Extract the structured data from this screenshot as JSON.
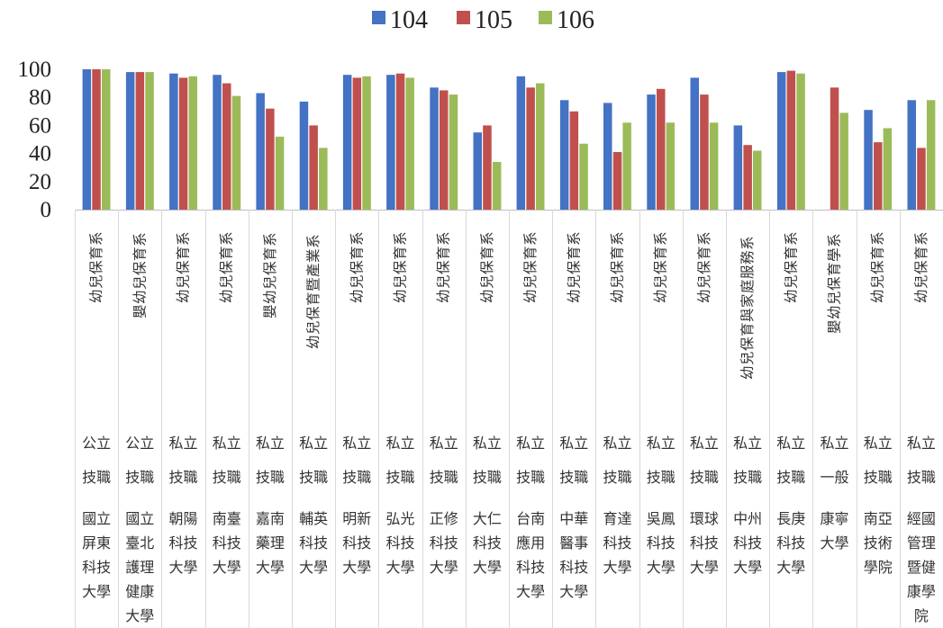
{
  "chart_data": {
    "type": "bar",
    "title": "",
    "xlabel": "",
    "ylabel": "",
    "ylim": [
      0,
      100
    ],
    "yticks": [
      0,
      20,
      40,
      60,
      80,
      100
    ],
    "grid": false,
    "legend_position": "top",
    "series": [
      {
        "name": "104",
        "color": "#4472C4",
        "values": [
          100,
          98,
          97,
          96,
          83,
          77,
          96,
          96,
          87,
          55,
          95,
          78,
          76,
          82,
          94,
          60,
          98,
          null,
          71,
          78
        ]
      },
      {
        "name": "105",
        "color": "#C0504D",
        "values": [
          100,
          98,
          94,
          90,
          72,
          60,
          94,
          97,
          85,
          60,
          87,
          70,
          41,
          86,
          82,
          46,
          99,
          87,
          48,
          44
        ]
      },
      {
        "name": "106",
        "color": "#9BBB59",
        "values": [
          100,
          98,
          95,
          81,
          52,
          44,
          95,
          94,
          82,
          34,
          90,
          47,
          62,
          62,
          62,
          42,
          97,
          69,
          58,
          78
        ]
      }
    ],
    "categories": [
      {
        "department": "幼兒保育系",
        "type": "公立",
        "sector": "技職",
        "school": [
          "國立",
          "屏東",
          "科技",
          "大學"
        ]
      },
      {
        "department": "嬰幼兒保育系",
        "type": "公立",
        "sector": "技職",
        "school": [
          "國立",
          "臺北",
          "護理",
          "健康",
          "大學"
        ]
      },
      {
        "department": "幼兒保育系",
        "type": "私立",
        "sector": "技職",
        "school": [
          "朝陽",
          "科技",
          "大學"
        ]
      },
      {
        "department": "幼兒保育系",
        "type": "私立",
        "sector": "技職",
        "school": [
          "南臺",
          "科技",
          "大學"
        ]
      },
      {
        "department": "嬰幼兒保育系",
        "type": "私立",
        "sector": "技職",
        "school": [
          "嘉南",
          "藥理",
          "大學"
        ]
      },
      {
        "department": "幼兒保育暨產業系",
        "type": "私立",
        "sector": "技職",
        "school": [
          "輔英",
          "科技",
          "大學"
        ]
      },
      {
        "department": "幼兒保育系",
        "type": "私立",
        "sector": "技職",
        "school": [
          "明新",
          "科技",
          "大學"
        ]
      },
      {
        "department": "幼兒保育系",
        "type": "私立",
        "sector": "技職",
        "school": [
          "弘光",
          "科技",
          "大學"
        ]
      },
      {
        "department": "幼兒保育系",
        "type": "私立",
        "sector": "技職",
        "school": [
          "正修",
          "科技",
          "大學"
        ]
      },
      {
        "department": "幼兒保育系",
        "type": "私立",
        "sector": "技職",
        "school": [
          "大仁",
          "科技",
          "大學"
        ]
      },
      {
        "department": "幼兒保育系",
        "type": "私立",
        "sector": "技職",
        "school": [
          "台南",
          "應用",
          "科技",
          "大學"
        ]
      },
      {
        "department": "幼兒保育系",
        "type": "私立",
        "sector": "技職",
        "school": [
          "中華",
          "醫事",
          "科技",
          "大學"
        ]
      },
      {
        "department": "幼兒保育系",
        "type": "私立",
        "sector": "技職",
        "school": [
          "育達",
          "科技",
          "大學"
        ]
      },
      {
        "department": "幼兒保育系",
        "type": "私立",
        "sector": "技職",
        "school": [
          "吳鳳",
          "科技",
          "大學"
        ]
      },
      {
        "department": "幼兒保育系",
        "type": "私立",
        "sector": "技職",
        "school": [
          "環球",
          "科技",
          "大學"
        ]
      },
      {
        "department": "幼兒保育與家庭服務系",
        "type": "私立",
        "sector": "技職",
        "school": [
          "中州",
          "科技",
          "大學"
        ]
      },
      {
        "department": "幼兒保育系",
        "type": "私立",
        "sector": "技職",
        "school": [
          "長庚",
          "科技",
          "大學"
        ]
      },
      {
        "department": "嬰幼兒保育學系",
        "type": "私立",
        "sector": "一般",
        "school": [
          "康寧",
          "大學"
        ]
      },
      {
        "department": "幼兒保育系",
        "type": "私立",
        "sector": "技職",
        "school": [
          "南亞",
          "技術",
          "學院"
        ]
      },
      {
        "department": "幼兒保育系",
        "type": "私立",
        "sector": "技職",
        "school": [
          "經國",
          "管理",
          "暨健",
          "康學",
          "院"
        ]
      }
    ]
  }
}
